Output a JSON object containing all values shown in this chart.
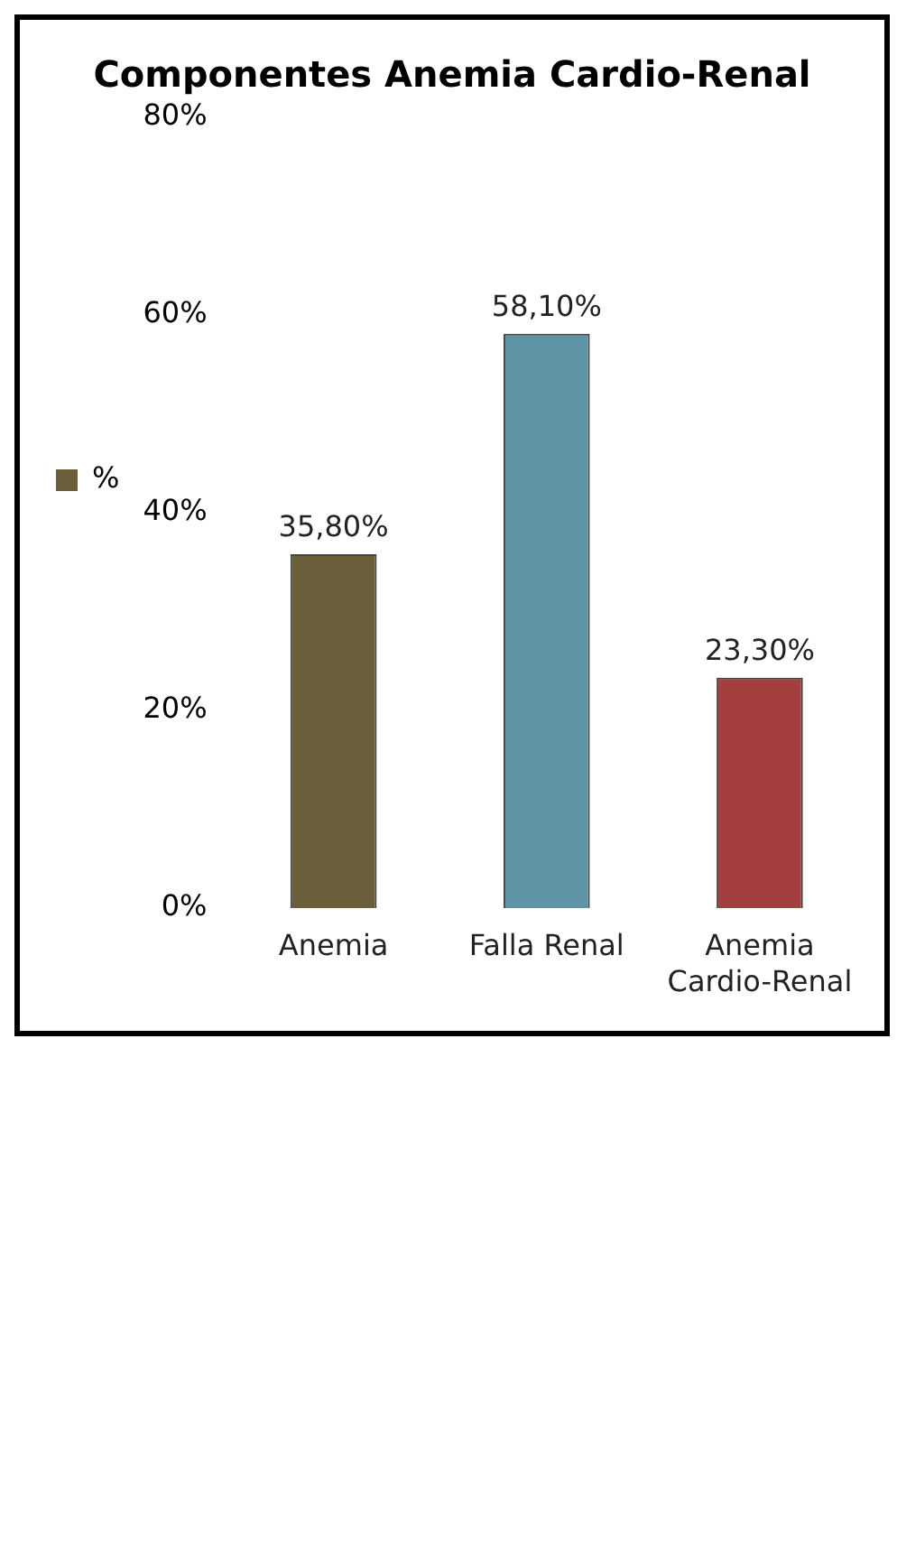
{
  "chart_data": {
    "type": "bar",
    "title": "Componentes Anemia Cardio-Renal",
    "categories": [
      "Anemia",
      "Falla Renal",
      "Anemia Cardio-Renal"
    ],
    "series": [
      {
        "name": "%",
        "colors": [
          "#6b5e3a",
          "#5f94a6",
          "#a3403f"
        ],
        "values": [
          35.8,
          58.1,
          23.3
        ],
        "value_labels": [
          "35,80%",
          "58,10%",
          "23,30%"
        ]
      }
    ],
    "ylim": [
      0,
      80
    ],
    "yticks": [
      {
        "value": 0,
        "label": "0%"
      },
      {
        "value": 20,
        "label": "20%"
      },
      {
        "value": 40,
        "label": "40%"
      },
      {
        "value": 60,
        "label": "60%"
      },
      {
        "value": 80,
        "label": "80%"
      }
    ],
    "grid": false,
    "legend": "left",
    "tick_labels": "y"
  }
}
